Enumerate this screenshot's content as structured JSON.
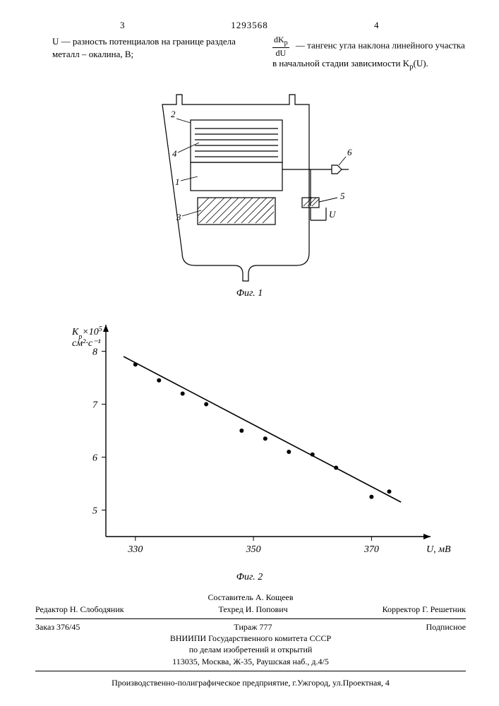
{
  "header": {
    "left_col": "3",
    "doc_number": "1293568",
    "right_col": "4"
  },
  "definitions": {
    "left_symbol": "U —",
    "left_text": "разность потенциалов на границе раздела металл – окалина, В;",
    "right_frac_num": "dK",
    "right_frac_num_sub": "p",
    "right_frac_den": "dU",
    "right_text": "— тангенс угла наклона линейного участка в начальной стадии зависимости K",
    "right_text_sub": "p",
    "right_text_tail": "(U)."
  },
  "figure1": {
    "caption": "Фиг. 1",
    "labels": {
      "l1": "1",
      "l2": "2",
      "l3": "3",
      "l4": "4",
      "l5": "5",
      "l6": "6",
      "lU": "U"
    },
    "colors": {
      "stroke": "#000000",
      "fill_hatch": "#000000",
      "bg": "#ffffff"
    },
    "line_width": 1.2
  },
  "chart": {
    "type": "scatter-line",
    "caption": "Фиг. 2",
    "y_label_line1": "K",
    "y_label_sub": "p",
    "y_label_line2": "×10",
    "y_label_sup": "5",
    "y_label_line3": "см²·с⁻¹",
    "x_label": "U, мВ",
    "xlim": [
      325,
      380
    ],
    "ylim": [
      4.5,
      8.5
    ],
    "xticks": [
      330,
      350,
      370
    ],
    "yticks": [
      5,
      6,
      7,
      8
    ],
    "points": [
      {
        "x": 330,
        "y": 7.75
      },
      {
        "x": 334,
        "y": 7.45
      },
      {
        "x": 338,
        "y": 7.2
      },
      {
        "x": 342,
        "y": 7.0
      },
      {
        "x": 348,
        "y": 6.5
      },
      {
        "x": 352,
        "y": 6.35
      },
      {
        "x": 356,
        "y": 6.1
      },
      {
        "x": 360,
        "y": 6.05
      },
      {
        "x": 364,
        "y": 5.8
      },
      {
        "x": 370,
        "y": 5.25
      },
      {
        "x": 373,
        "y": 5.35
      }
    ],
    "fit_line": {
      "x1": 328,
      "y1": 7.9,
      "x2": 375,
      "y2": 5.15
    },
    "colors": {
      "axis": "#000000",
      "line": "#000000",
      "point": "#000000",
      "bg": "#ffffff"
    },
    "axis_width": 1.4,
    "line_width": 1.6,
    "marker_radius": 3,
    "tick_fontsize": 14,
    "label_fontsize": 14
  },
  "credits": {
    "compiler": "Составитель А. Кощеев",
    "editor": "Редактор Н. Слободяник",
    "techred": "Техред И. Попович",
    "corrector": "Корректор Г. Решетник"
  },
  "pubinfo": {
    "order": "Заказ 376/45",
    "tirazh": "Тираж 777",
    "sub": "Подписное",
    "org1": "ВНИИПИ Государственного комитета СССР",
    "org2": "по делам изобретений и открытий",
    "addr": "113035, Москва, Ж-35, Раушская наб., д.4/5"
  },
  "printer": "Производственно-полиграфическое предприятие, г.Ужгород, ул.Проектная, 4"
}
